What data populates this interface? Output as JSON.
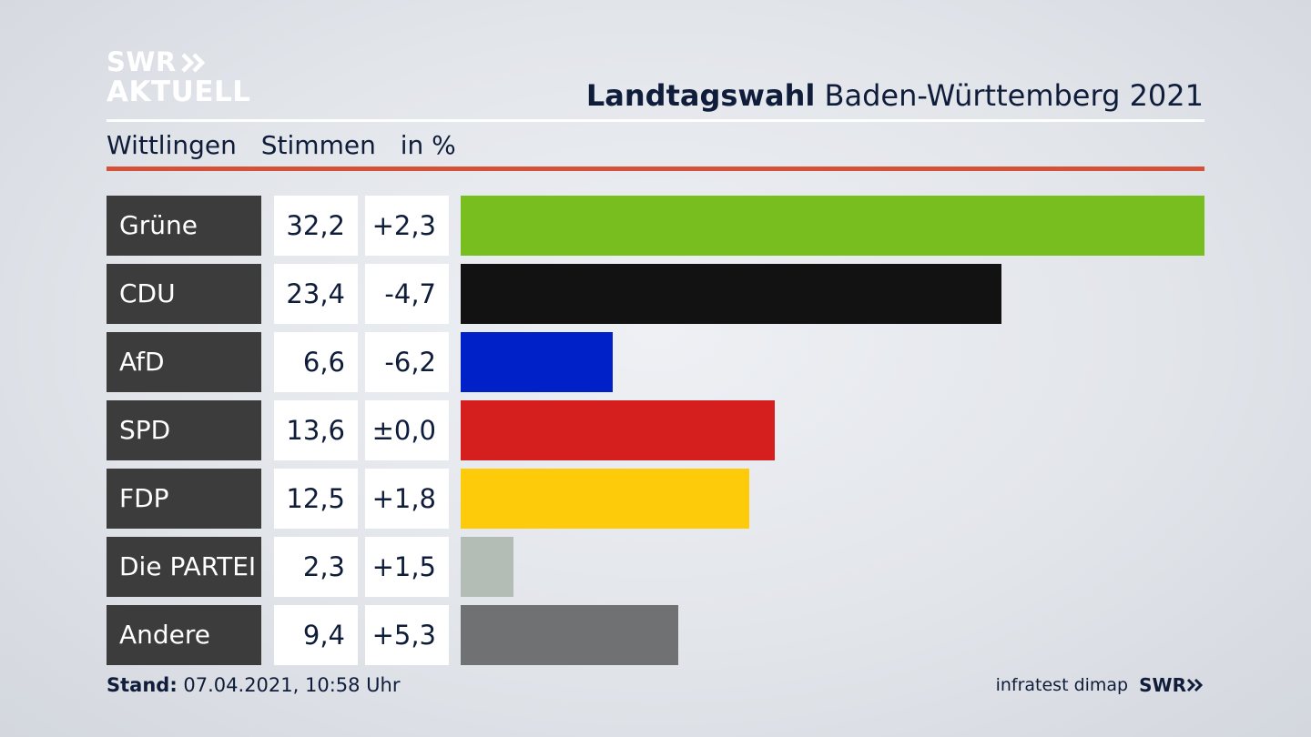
{
  "header": {
    "logo_line1": "SWR",
    "logo_line2": "AKTUELL",
    "title_bold": "Landtagswahl",
    "title_rest": " Baden-Württemberg 2021"
  },
  "subtitle": {
    "place": "Wittlingen",
    "measure": "Stimmen",
    "unit": "in %"
  },
  "footer": {
    "stand_label": "Stand:",
    "stand_value": " 07.04.2021, 10:58 Uhr",
    "source": "infratest dimap",
    "brand": "SWR"
  },
  "colors": {
    "accent_red_rule": "#d4513a",
    "label_bg": "#3c3c3c"
  },
  "chart_data": {
    "type": "bar",
    "orientation": "horizontal",
    "categories": [
      "Grüne",
      "CDU",
      "AfD",
      "SPD",
      "FDP",
      "Die PARTEI",
      "Andere"
    ],
    "values": [
      32.2,
      23.4,
      6.6,
      13.6,
      12.5,
      2.3,
      9.4
    ],
    "value_labels": [
      "32,2",
      "23,4",
      "6,6",
      "13,6",
      "12,5",
      "2,3",
      "9,4"
    ],
    "changes": [
      2.3,
      -4.7,
      -6.2,
      0.0,
      1.8,
      1.5,
      5.3
    ],
    "change_labels": [
      "+2,3",
      "-4,7",
      "-6,2",
      "±0,0",
      "+1,8",
      "+1,5",
      "+5,3"
    ],
    "colors": [
      "#78be1e",
      "#121212",
      "#0021c8",
      "#d51f1f",
      "#fecb0b",
      "#b3bcb5",
      "#707172"
    ],
    "xlim": [
      0,
      32.2
    ]
  }
}
